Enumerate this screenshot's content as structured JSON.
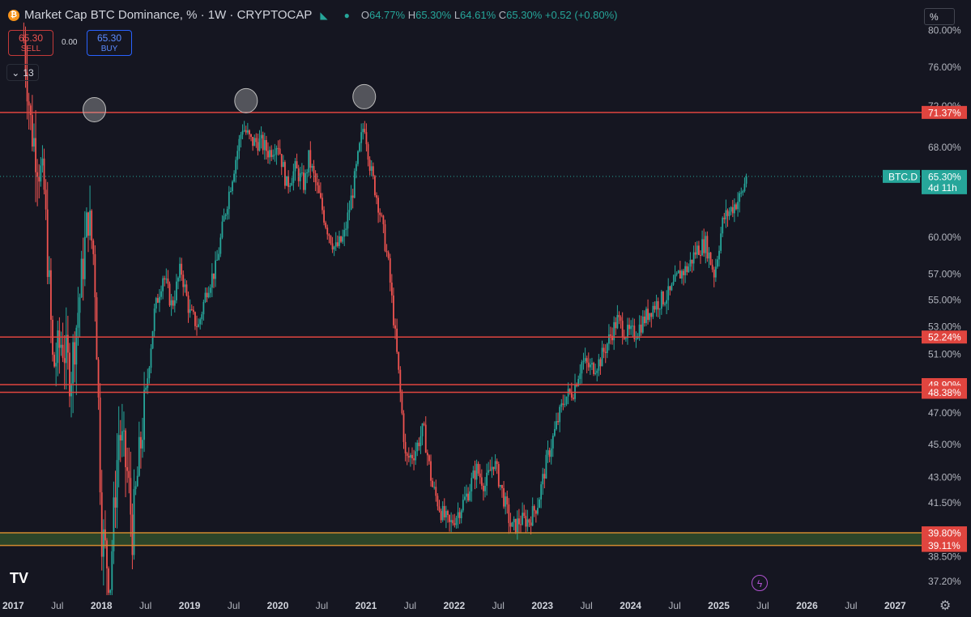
{
  "header": {
    "title": "Market Cap BTC Dominance, % · 1W · CRYPTOCAP",
    "ohlc": [
      {
        "k": "O",
        "v": "64.77%"
      },
      {
        "k": "H",
        "v": "65.30%"
      },
      {
        "k": "L",
        "v": "64.61%"
      },
      {
        "k": "C",
        "v": "65.30%"
      }
    ],
    "change": "+0.52 (+0.80%)",
    "sell_price": "65.30",
    "sell_label": "SELL",
    "buy_price": "65.30",
    "buy_label": "BUY",
    "spread": "0.00",
    "indicator_count": "13",
    "scale_button": "%",
    "logo": "TV"
  },
  "colors": {
    "background": "#151621",
    "up": "#26a69a",
    "down": "#ef5350",
    "level_line": "#e0453f",
    "support_zone": "#2f4a2a",
    "support_line": "#d08a30"
  },
  "chart_data": {
    "type": "candlestick",
    "symbol_label": "BTC.D",
    "last_value": 65.3,
    "last_value_label": "65.30%",
    "countdown": "4d 11h",
    "y_scale": "log",
    "ylim": [
      36.5,
      82.5
    ],
    "y_ticks": [
      80.0,
      76.0,
      72.0,
      68.0,
      60.0,
      57.0,
      55.0,
      53.0,
      51.0,
      47.0,
      45.0,
      43.0,
      41.5,
      38.5,
      37.2
    ],
    "y_tick_labels": [
      "80.00%",
      "76.00%",
      "72.00%",
      "68.00%",
      "60.00%",
      "57.00%",
      "55.00%",
      "53.00%",
      "51.00%",
      "47.00%",
      "45.00%",
      "43.00%",
      "41.50%",
      "38.50%",
      "37.20%"
    ],
    "x_range": [
      2016.85,
      2027.3
    ],
    "x_ticks": [
      2017,
      2017.5,
      2018,
      2018.5,
      2019,
      2019.5,
      2020,
      2020.5,
      2021,
      2021.5,
      2022,
      2022.5,
      2023,
      2023.5,
      2024,
      2024.5,
      2025,
      2025.5,
      2026,
      2026.5,
      2027
    ],
    "x_tick_labels": [
      "2017",
      "Jul",
      "2018",
      "Jul",
      "2019",
      "Jul",
      "2020",
      "Jul",
      "2021",
      "Jul",
      "2022",
      "Jul",
      "2023",
      "Jul",
      "2024",
      "Jul",
      "2025",
      "Jul",
      "2026",
      "Jul",
      "2027"
    ],
    "levels": [
      {
        "value": 71.37,
        "label": "71.37%"
      },
      {
        "value": 52.24,
        "label": "52.24%"
      },
      {
        "value": 48.9,
        "label": "48.90%"
      },
      {
        "value": 48.38,
        "label": "48.38%"
      },
      {
        "value": 39.8,
        "label": "39.80%"
      },
      {
        "value": 39.11,
        "label": "39.11%"
      }
    ],
    "support_zone": [
      39.11,
      39.8
    ],
    "circled_peaks": [
      {
        "x": 2017.92,
        "y": 71.4
      },
      {
        "x": 2019.64,
        "y": 72.3
      },
      {
        "x": 2020.98,
        "y": 72.7
      }
    ],
    "trend": [
      [
        2017.12,
        79.0
      ],
      [
        2017.2,
        70.0
      ],
      [
        2017.35,
        64.0
      ],
      [
        2017.45,
        50.0
      ],
      [
        2017.55,
        52.0
      ],
      [
        2017.65,
        49.5
      ],
      [
        2017.75,
        55.0
      ],
      [
        2017.85,
        62.0
      ],
      [
        2017.92,
        58.0
      ],
      [
        2018.0,
        40.0
      ],
      [
        2018.1,
        37.2
      ],
      [
        2018.2,
        46.0
      ],
      [
        2018.3,
        43.0
      ],
      [
        2018.35,
        39.8
      ],
      [
        2018.5,
        48.0
      ],
      [
        2018.6,
        54.0
      ],
      [
        2018.7,
        57.0
      ],
      [
        2018.8,
        54.5
      ],
      [
        2018.9,
        57.5
      ],
      [
        2019.0,
        54.0
      ],
      [
        2019.1,
        53.0
      ],
      [
        2019.2,
        56.0
      ],
      [
        2019.3,
        57.5
      ],
      [
        2019.4,
        62.0
      ],
      [
        2019.5,
        66.0
      ],
      [
        2019.6,
        70.0
      ],
      [
        2019.7,
        68.5
      ],
      [
        2019.8,
        68.5
      ],
      [
        2019.9,
        67.5
      ],
      [
        2020.0,
        68.5
      ],
      [
        2020.1,
        64.5
      ],
      [
        2020.2,
        66.0
      ],
      [
        2020.3,
        64.5
      ],
      [
        2020.35,
        67.0
      ],
      [
        2020.45,
        64.0
      ],
      [
        2020.55,
        61.0
      ],
      [
        2020.65,
        59.0
      ],
      [
        2020.75,
        60.0
      ],
      [
        2020.85,
        64.0
      ],
      [
        2020.98,
        70.5
      ],
      [
        2021.05,
        66.0
      ],
      [
        2021.15,
        62.5
      ],
      [
        2021.25,
        58.0
      ],
      [
        2021.35,
        51.0
      ],
      [
        2021.45,
        44.0
      ],
      [
        2021.55,
        44.5
      ],
      [
        2021.65,
        46.0
      ],
      [
        2021.75,
        42.5
      ],
      [
        2021.85,
        41.0
      ],
      [
        2021.95,
        40.2
      ],
      [
        2022.05,
        41.0
      ],
      [
        2022.15,
        42.0
      ],
      [
        2022.25,
        43.5
      ],
      [
        2022.35,
        42.5
      ],
      [
        2022.45,
        44.0
      ],
      [
        2022.55,
        42.0
      ],
      [
        2022.65,
        40.0
      ],
      [
        2022.75,
        40.5
      ],
      [
        2022.85,
        40.5
      ],
      [
        2022.95,
        41.5
      ],
      [
        2023.05,
        44.0
      ],
      [
        2023.15,
        46.0
      ],
      [
        2023.25,
        48.0
      ],
      [
        2023.35,
        48.5
      ],
      [
        2023.45,
        50.5
      ],
      [
        2023.55,
        50.0
      ],
      [
        2023.65,
        50.5
      ],
      [
        2023.75,
        52.0
      ],
      [
        2023.85,
        53.5
      ],
      [
        2023.95,
        52.5
      ],
      [
        2024.05,
        52.5
      ],
      [
        2024.15,
        53.5
      ],
      [
        2024.25,
        54.5
      ],
      [
        2024.35,
        55.0
      ],
      [
        2024.45,
        55.5
      ],
      [
        2024.55,
        57.0
      ],
      [
        2024.65,
        57.5
      ],
      [
        2024.75,
        59.0
      ],
      [
        2024.85,
        59.5
      ],
      [
        2024.95,
        57.0
      ],
      [
        2025.05,
        61.5
      ],
      [
        2025.15,
        62.5
      ],
      [
        2025.25,
        63.5
      ],
      [
        2025.32,
        65.3
      ]
    ]
  }
}
